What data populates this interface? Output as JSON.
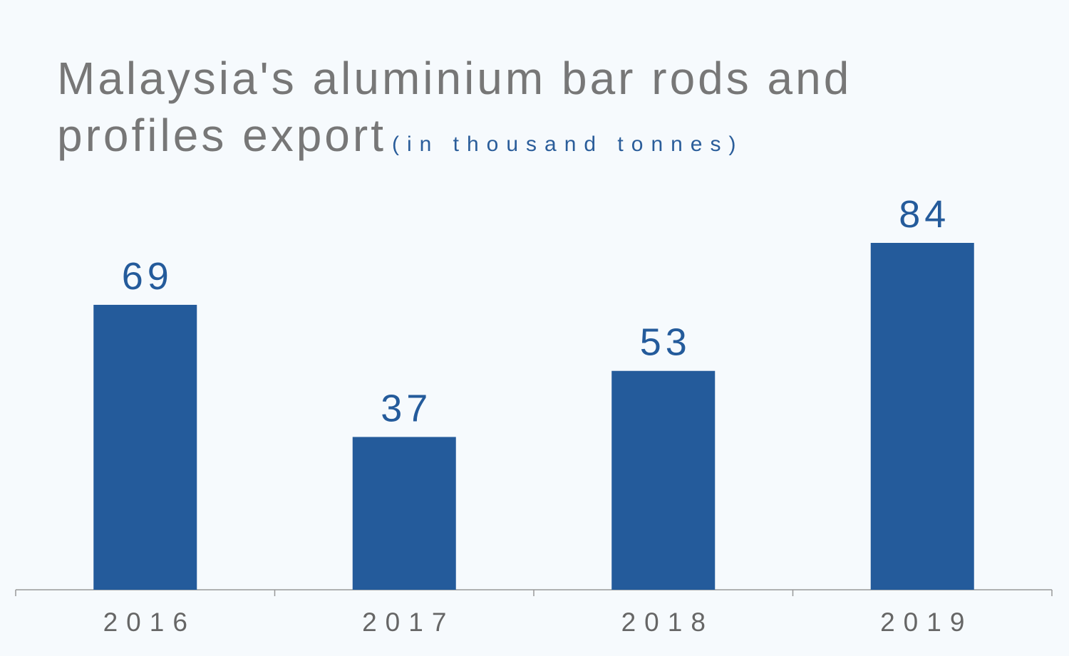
{
  "chart_data": {
    "type": "bar",
    "title": "Malaysia's aluminium bar rods and profiles export",
    "subtitle": "(in thousand tonnes)",
    "categories": [
      "2016",
      "2017",
      "2018",
      "2019"
    ],
    "values": [
      69,
      37,
      53,
      84
    ],
    "color": "#245b9b"
  }
}
